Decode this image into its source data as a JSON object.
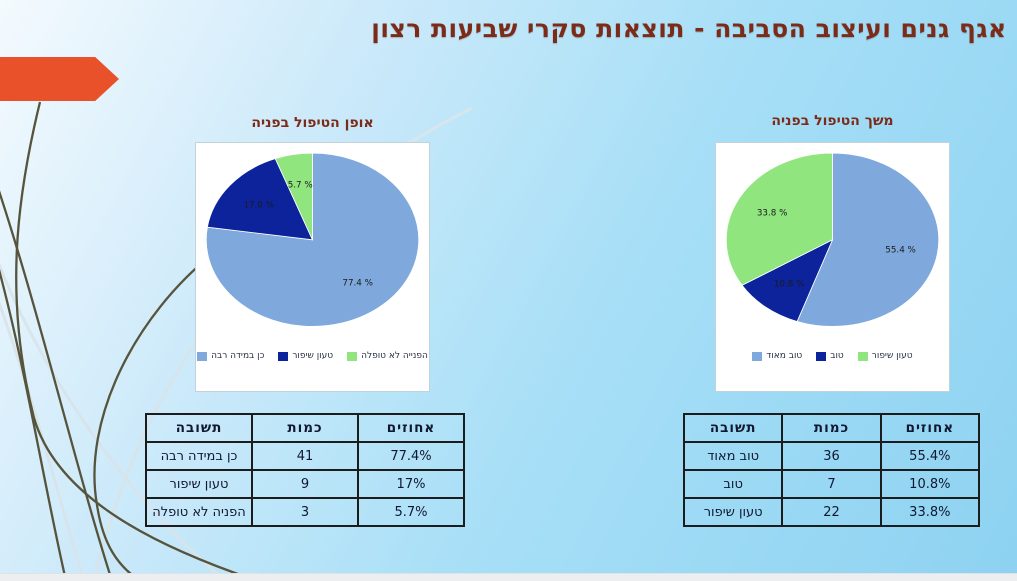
{
  "slide": {
    "title": "אגף גנים ועיצוב הסביבה - תוצאות סקרי שביעות רצון",
    "title_color": "#7B2B17",
    "accent_arrow_color": "#E8512A",
    "background_color": "#A7DFF7"
  },
  "chart_data": [
    {
      "type": "pie",
      "title": "אופן הטיפול בפניה",
      "labels": [
        "כן במידה רבה",
        "טעון שיפור",
        "הפנייה לא טופלה"
      ],
      "values": [
        77.4,
        17.0,
        5.7
      ],
      "counts": [
        41,
        9,
        3
      ],
      "slice_labels": [
        "77.4 %",
        "17.0 %",
        "5.7 %"
      ],
      "colors": [
        "#7FA9DC",
        "#0C239C",
        "#90E57E"
      ],
      "legend_position": "bottom"
    },
    {
      "type": "pie",
      "title": "משך הטיפול בפניה",
      "labels": [
        "טוב מאוד",
        "טוב",
        "טעון שיפור"
      ],
      "values": [
        55.4,
        10.8,
        33.8
      ],
      "counts": [
        36,
        7,
        22
      ],
      "slice_labels": [
        "55.4 %",
        "10.8 %",
        "33.8 %"
      ],
      "colors": [
        "#7FA9DC",
        "#0C239C",
        "#90E57E"
      ],
      "legend_position": "bottom"
    }
  ],
  "tables": [
    {
      "headers": [
        "תשובה",
        "כמות",
        "אחוזים"
      ],
      "rows": [
        [
          "כן במידה רבה",
          "41",
          "77.4%"
        ],
        [
          "טעון שיפור",
          "9",
          "17%"
        ],
        [
          "הפניה לא טופלה",
          "3",
          "5.7%"
        ]
      ]
    },
    {
      "headers": [
        "תשובה",
        "כמות",
        "אחוזים"
      ],
      "rows": [
        [
          "טוב מאוד",
          "36",
          "55.4%"
        ],
        [
          "טוב",
          "7",
          "10.8%"
        ],
        [
          "טעון שיפור",
          "22",
          "33.8%"
        ]
      ]
    }
  ]
}
